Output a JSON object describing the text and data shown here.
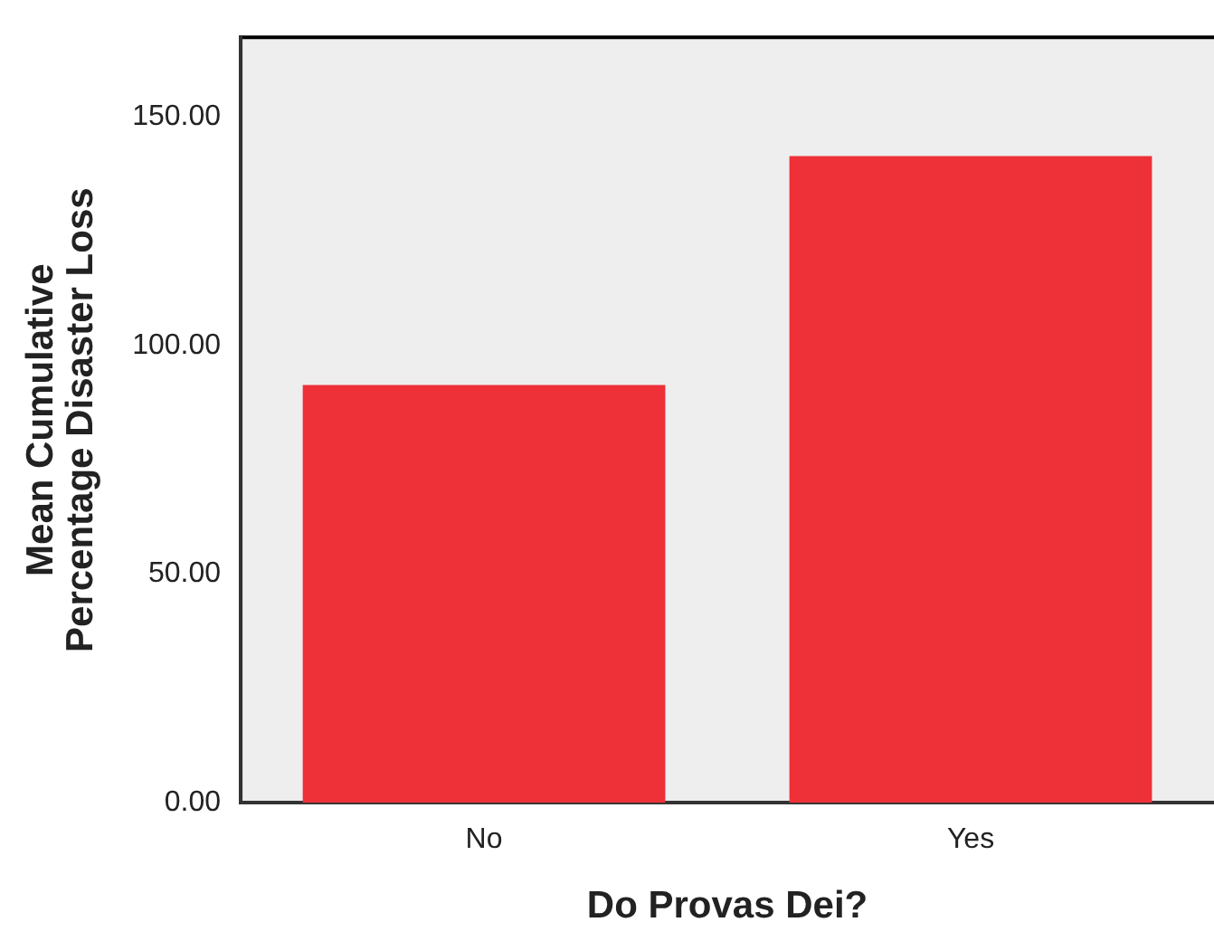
{
  "chart_data": {
    "type": "bar",
    "xlabel": "Do Provas Dei?",
    "ylabel": "Mean Cumulative\nPercentage Disaster Loss",
    "categories": [
      "No",
      "Yes"
    ],
    "values": [
      91.4,
      141.5
    ],
    "color": "#ee3039",
    "ylim": [
      0,
      167.5
    ],
    "yticks": [
      {
        "value": 0,
        "label": "0.00"
      },
      {
        "value": 50,
        "label": "50.00"
      },
      {
        "value": 100,
        "label": "100.00"
      },
      {
        "value": 150,
        "label": "150.00"
      }
    ],
    "grid": false,
    "legend": false
  }
}
